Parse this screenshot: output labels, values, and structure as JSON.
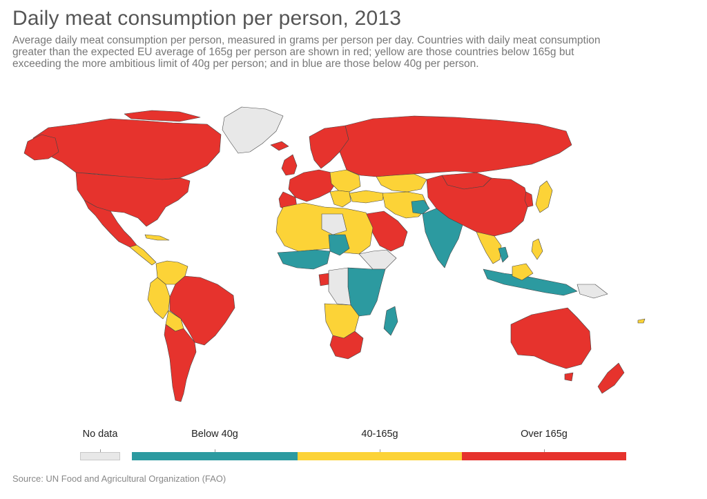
{
  "title": "Daily meat consumption per person, 2013",
  "subtitle": "Average daily meat consumption per person, measured in grams per person per day. Countries with daily meat consumption greater than the expected EU average of 165g per person are shown in red; yellow are those countries below 165g but exceeding the more ambitious limit of 40g per person; and in blue are those below 40g per person.",
  "colors": {
    "no_data": "#e8e8e8",
    "below_40": "#2c9aa0",
    "mid": "#fcd337",
    "over_165": "#e6332d",
    "border": "#444444"
  },
  "legend": {
    "no_data": "No data",
    "below_40": "Below 40g",
    "mid": "40-165g",
    "over_165": "Over 165g"
  },
  "source": "Source: UN Food and Agricultural Organization (FAO)"
}
